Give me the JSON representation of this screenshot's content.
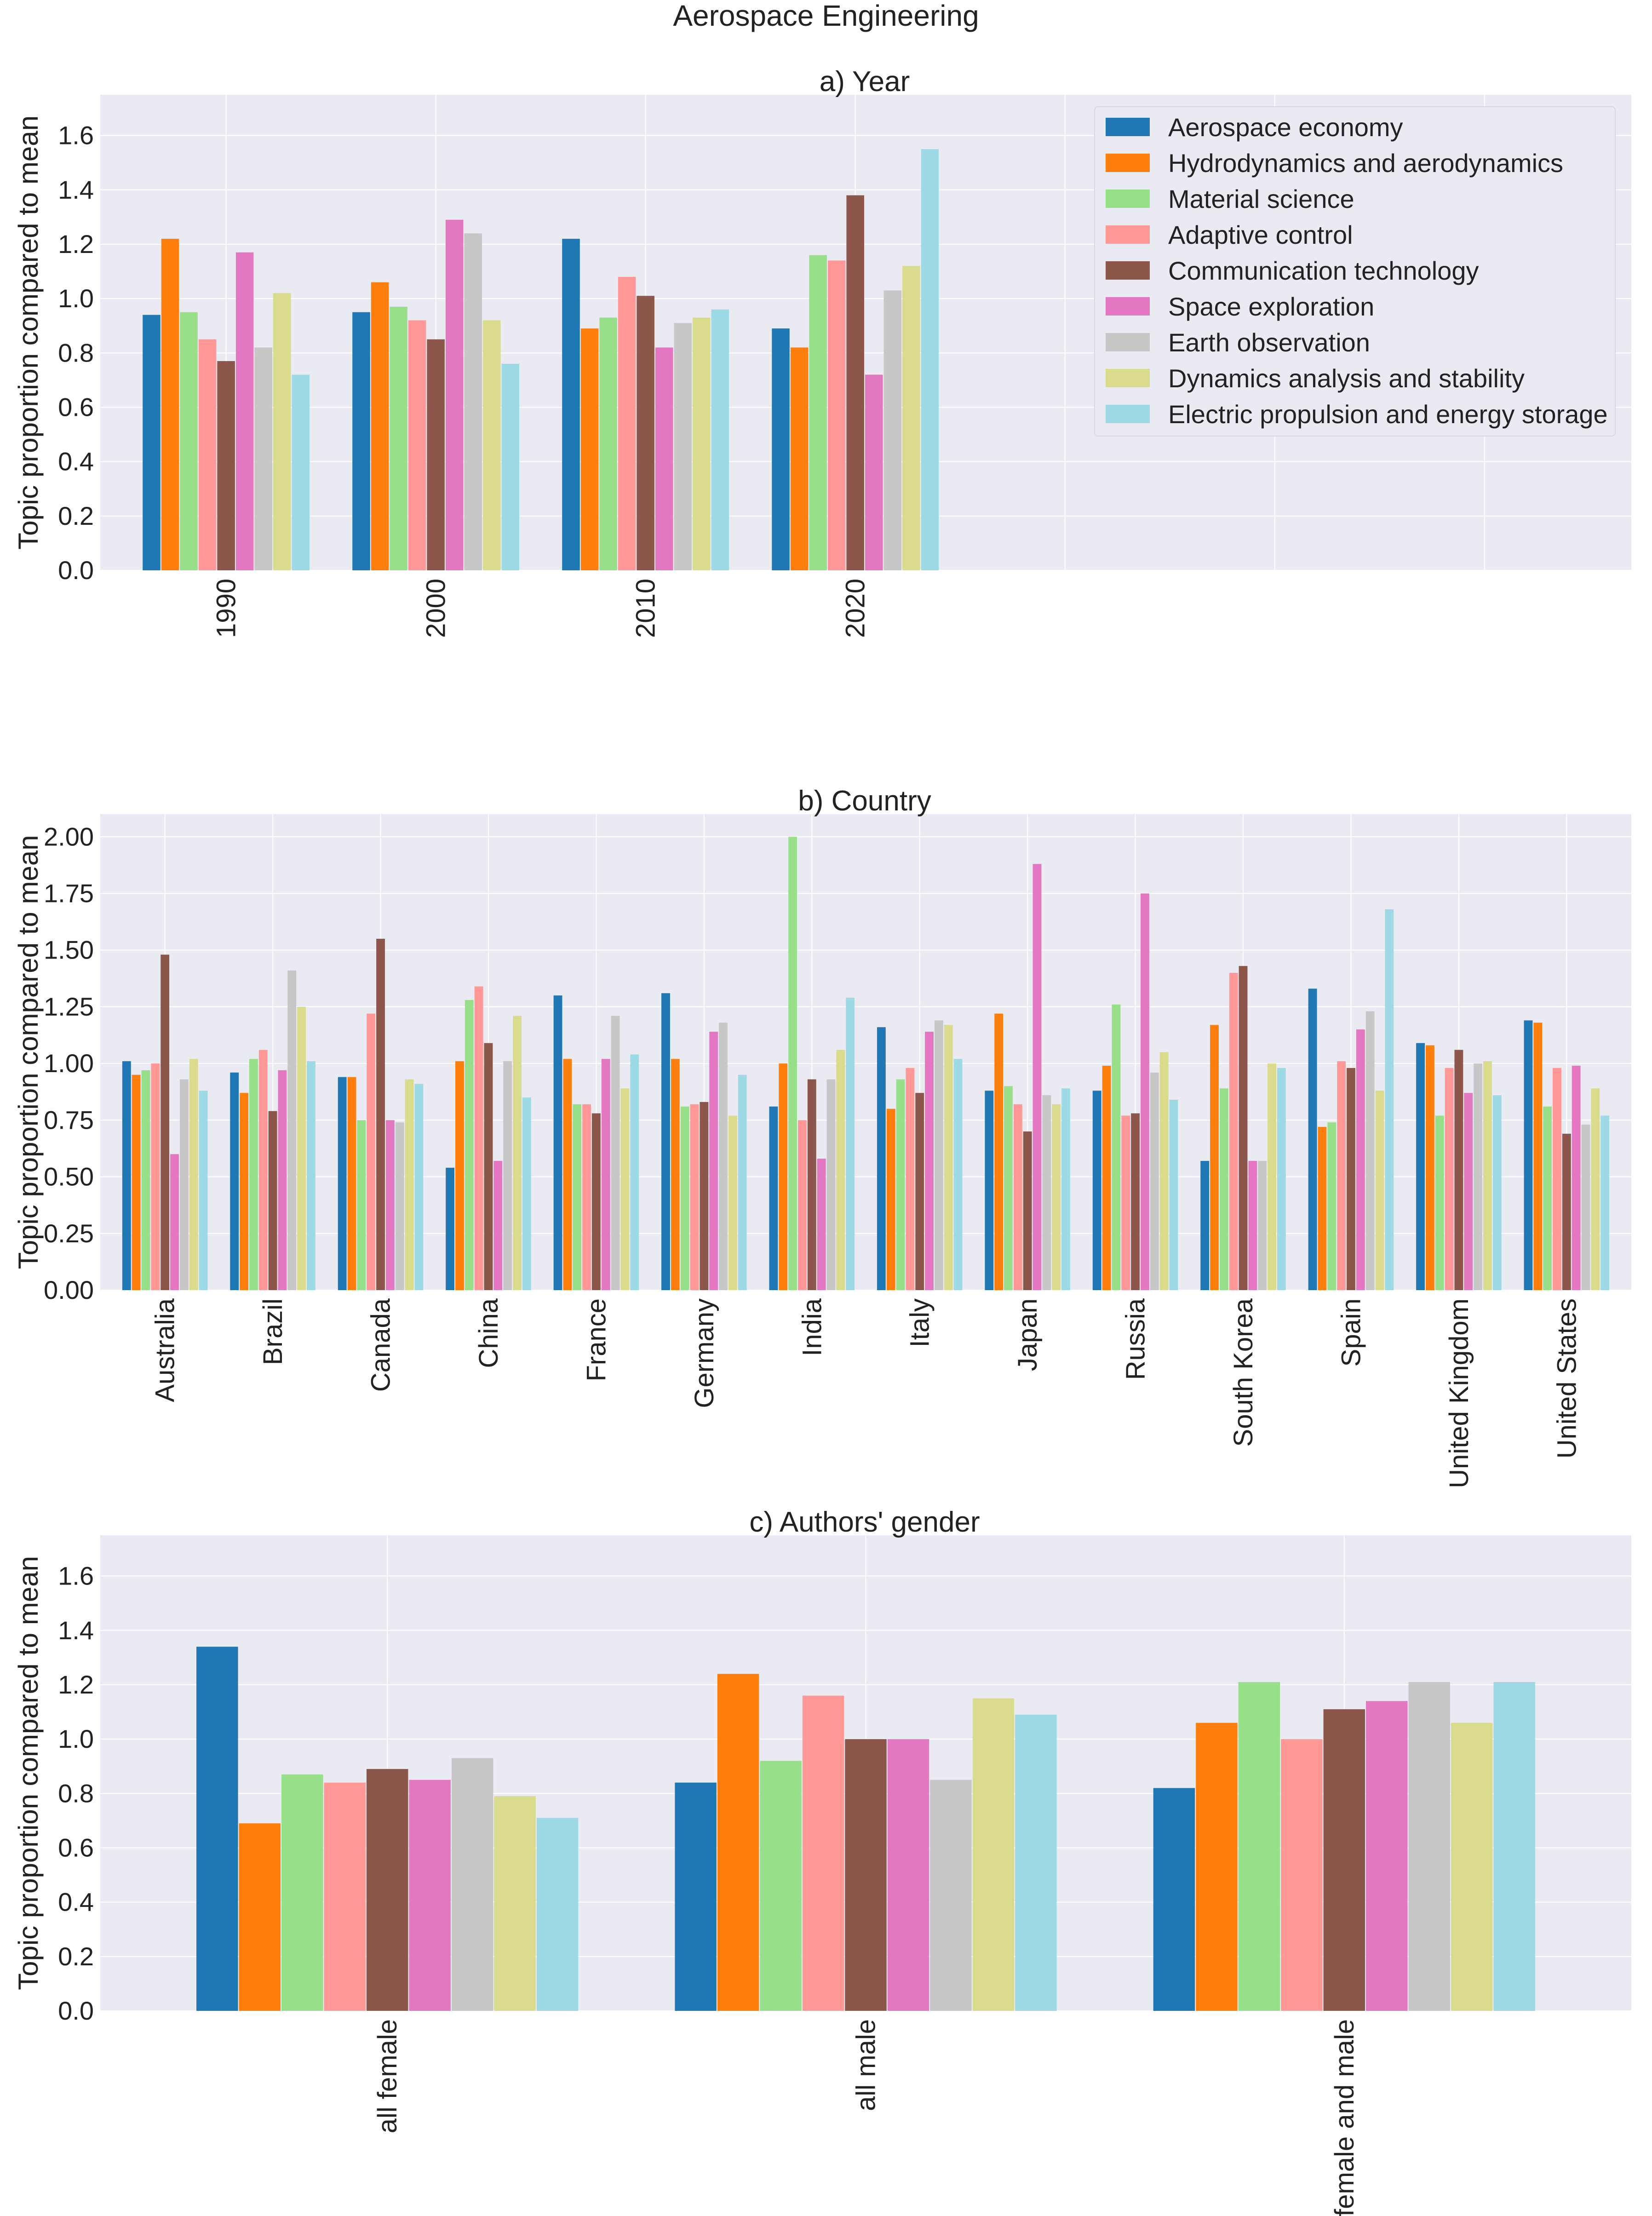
{
  "figure_title": "Aerospace Engineering",
  "series_names": [
    "Aerospace economy",
    "Hydrodynamics and aerodynamics",
    "Material science",
    "Adaptive control",
    "Communication technology",
    "Space exploration",
    "Earth observation",
    "Dynamics analysis and stability",
    "Electric propulsion and energy storage"
  ],
  "series_colors": [
    "#1f77b4",
    "#ff7f0e",
    "#98df8a",
    "#ff9896",
    "#8c564b",
    "#e377c2",
    "#c7c7c7",
    "#dbdb8d",
    "#9edae5"
  ],
  "chart_data": [
    {
      "type": "bar",
      "title": "a) Year",
      "ylabel": "Topic proportion compared to mean",
      "xlabel": "",
      "ylim": [
        0,
        1.75
      ],
      "yticks": [
        "0.0",
        "0.2",
        "0.4",
        "0.6",
        "0.8",
        "1.0",
        "1.2",
        "1.4",
        "1.6"
      ],
      "categories": [
        "1990",
        "2000",
        "2010",
        "2020"
      ],
      "legend_position": "upper-right",
      "grid": true,
      "series": [
        {
          "name": "Aerospace economy",
          "values": [
            0.94,
            0.95,
            1.22,
            0.89
          ]
        },
        {
          "name": "Hydrodynamics and aerodynamics",
          "values": [
            1.22,
            1.06,
            0.89,
            0.82
          ]
        },
        {
          "name": "Material science",
          "values": [
            0.95,
            0.97,
            0.93,
            1.16
          ]
        },
        {
          "name": "Adaptive control",
          "values": [
            0.85,
            0.92,
            1.08,
            1.14
          ]
        },
        {
          "name": "Communication technology",
          "values": [
            0.77,
            0.85,
            1.01,
            1.38
          ]
        },
        {
          "name": "Space exploration",
          "values": [
            1.17,
            1.29,
            0.82,
            0.72
          ]
        },
        {
          "name": "Earth observation",
          "values": [
            0.82,
            1.24,
            0.91,
            1.03
          ]
        },
        {
          "name": "Dynamics analysis and stability",
          "values": [
            1.02,
            0.92,
            0.93,
            1.12
          ]
        },
        {
          "name": "Electric propulsion and energy storage",
          "values": [
            0.72,
            0.76,
            0.96,
            1.55
          ]
        }
      ]
    },
    {
      "type": "bar",
      "title": "b) Country",
      "ylabel": "Topic proportion compared to mean",
      "xlabel": "",
      "ylim": [
        0,
        2.1
      ],
      "yticks": [
        "0.00",
        "0.25",
        "0.50",
        "0.75",
        "1.00",
        "1.25",
        "1.50",
        "1.75",
        "2.00"
      ],
      "categories": [
        "Australia",
        "Brazil",
        "Canada",
        "China",
        "France",
        "Germany",
        "India",
        "Italy",
        "Japan",
        "Russia",
        "South Korea",
        "Spain",
        "United Kingdom",
        "United States"
      ],
      "grid": true,
      "series": [
        {
          "name": "Aerospace economy",
          "values": [
            1.01,
            0.96,
            0.94,
            0.54,
            1.3,
            1.31,
            0.81,
            1.16,
            0.88,
            0.88,
            0.57,
            1.33,
            1.09,
            1.19
          ]
        },
        {
          "name": "Hydrodynamics and aerodynamics",
          "values": [
            0.95,
            0.87,
            0.94,
            1.01,
            1.02,
            1.02,
            1.0,
            0.8,
            1.22,
            0.99,
            1.17,
            0.72,
            1.08,
            1.18
          ]
        },
        {
          "name": "Material science",
          "values": [
            0.97,
            1.02,
            0.75,
            1.28,
            0.82,
            0.81,
            2.0,
            0.93,
            0.9,
            1.26,
            0.89,
            0.74,
            0.77,
            0.81
          ]
        },
        {
          "name": "Adaptive control",
          "values": [
            1.0,
            1.06,
            1.22,
            1.34,
            0.82,
            0.82,
            0.75,
            0.98,
            0.82,
            0.77,
            1.4,
            1.01,
            0.98,
            0.98
          ]
        },
        {
          "name": "Communication technology",
          "values": [
            1.48,
            0.79,
            1.55,
            1.09,
            0.78,
            0.83,
            0.93,
            0.87,
            0.7,
            0.78,
            1.43,
            0.98,
            1.06,
            0.69
          ]
        },
        {
          "name": "Space exploration",
          "values": [
            0.6,
            0.97,
            0.75,
            0.57,
            1.02,
            1.14,
            0.58,
            1.14,
            1.88,
            1.75,
            0.57,
            1.15,
            0.87,
            0.99
          ]
        },
        {
          "name": "Earth observation",
          "values": [
            0.93,
            1.41,
            0.74,
            1.01,
            1.21,
            1.18,
            0.93,
            1.19,
            0.86,
            0.96,
            0.57,
            1.23,
            1.0,
            0.73
          ]
        },
        {
          "name": "Dynamics analysis and stability",
          "values": [
            1.02,
            1.25,
            0.93,
            1.21,
            0.89,
            0.77,
            1.06,
            1.17,
            0.82,
            1.05,
            1.0,
            0.88,
            1.01,
            0.89
          ]
        },
        {
          "name": "Electric propulsion and energy storage",
          "values": [
            0.88,
            1.01,
            0.91,
            0.85,
            1.04,
            0.95,
            1.29,
            1.02,
            0.89,
            0.84,
            0.98,
            1.68,
            0.86,
            0.77
          ]
        }
      ]
    },
    {
      "type": "bar",
      "title": "c) Authors' gender",
      "ylabel": "Topic proportion compared to mean",
      "xlabel": "",
      "ylim": [
        0,
        1.75
      ],
      "yticks": [
        "0.0",
        "0.2",
        "0.4",
        "0.6",
        "0.8",
        "1.0",
        "1.2",
        "1.4",
        "1.6"
      ],
      "categories": [
        "all female",
        "all male",
        "female and male"
      ],
      "grid": true,
      "series": [
        {
          "name": "Aerospace economy",
          "values": [
            1.34,
            0.84,
            0.82
          ]
        },
        {
          "name": "Hydrodynamics and aerodynamics",
          "values": [
            0.69,
            1.24,
            1.06
          ]
        },
        {
          "name": "Material science",
          "values": [
            0.87,
            0.92,
            1.21
          ]
        },
        {
          "name": "Adaptive control",
          "values": [
            0.84,
            1.16,
            1.0
          ]
        },
        {
          "name": "Communication technology",
          "values": [
            0.89,
            1.0,
            1.11
          ]
        },
        {
          "name": "Space exploration",
          "values": [
            0.85,
            1.0,
            1.14
          ]
        },
        {
          "name": "Earth observation",
          "values": [
            0.93,
            0.85,
            1.21
          ]
        },
        {
          "name": "Dynamics analysis and stability",
          "values": [
            0.79,
            1.15,
            1.06
          ]
        },
        {
          "name": "Electric propulsion and energy storage",
          "values": [
            0.71,
            1.09,
            1.21
          ]
        }
      ]
    }
  ]
}
